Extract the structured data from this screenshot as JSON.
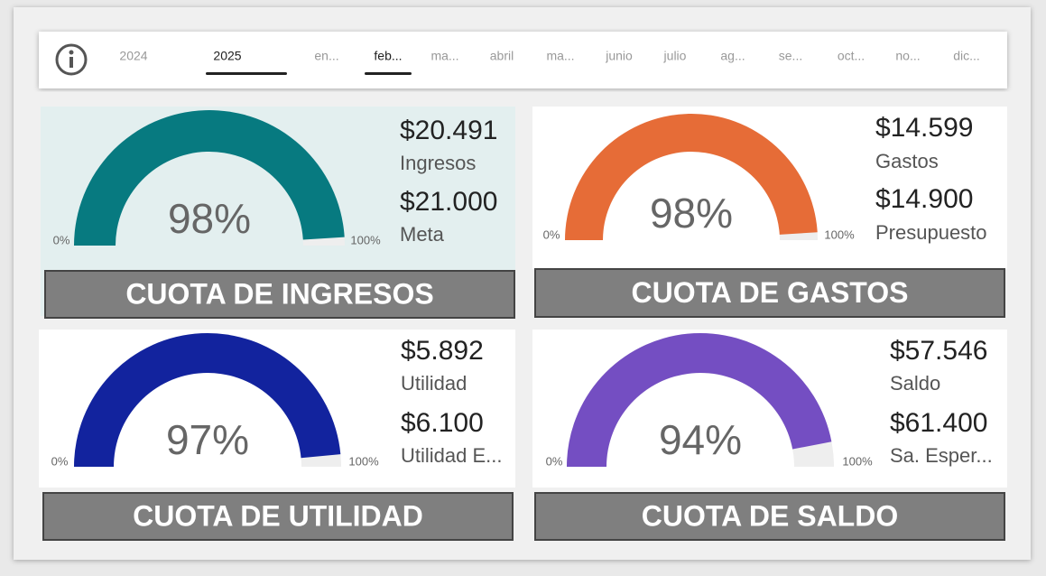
{
  "slicer": {
    "years": [
      "2024",
      "2025"
    ],
    "selected_year": "2025",
    "months": [
      "en...",
      "feb...",
      "ma...",
      "abril",
      "ma...",
      "junio",
      "julio",
      "ag...",
      "se...",
      "oct...",
      "no...",
      "dic..."
    ],
    "selected_month": "feb..."
  },
  "chart_data": [
    {
      "type": "gauge",
      "title": "CUOTA DE INGRESOS",
      "color": "#077a80",
      "gauge_value": 98,
      "gauge_label": "98%",
      "ylim": [
        0,
        100
      ],
      "yticks": [
        {
          "value": 0,
          "label": "0%"
        },
        {
          "value": 100,
          "label": "100%"
        }
      ],
      "categories": [
        "Ingresos",
        "Meta"
      ],
      "values": [
        20491,
        21000
      ],
      "value_labels": [
        "$20.491",
        "$21.000"
      ]
    },
    {
      "type": "gauge",
      "title": "CUOTA DE GASTOS",
      "color": "#e66c37",
      "gauge_value": 98,
      "gauge_label": "98%",
      "ylim": [
        0,
        100
      ],
      "yticks": [
        {
          "value": 0,
          "label": "0%"
        },
        {
          "value": 100,
          "label": "100%"
        }
      ],
      "categories": [
        "Gastos",
        "Presupuesto"
      ],
      "values": [
        14599,
        14900
      ],
      "value_labels": [
        "$14.599",
        "$14.900"
      ]
    },
    {
      "type": "gauge",
      "title": "CUOTA DE UTILIDAD",
      "color": "#12239e",
      "gauge_value": 97,
      "gauge_label": "97%",
      "ylim": [
        0,
        100
      ],
      "yticks": [
        {
          "value": 0,
          "label": "0%"
        },
        {
          "value": 100,
          "label": "100%"
        }
      ],
      "categories": [
        "Utilidad",
        "Utilidad E..."
      ],
      "values": [
        5892,
        6100
      ],
      "value_labels": [
        "$5.892",
        "$6.100"
      ]
    },
    {
      "type": "gauge",
      "title": "CUOTA DE SALDO",
      "color": "#744ec2",
      "gauge_value": 94,
      "gauge_label": "94%",
      "ylim": [
        0,
        100
      ],
      "yticks": [
        {
          "value": 0,
          "label": "0%"
        },
        {
          "value": 100,
          "label": "100%"
        }
      ],
      "categories": [
        "Saldo",
        "Sa. Esper..."
      ],
      "values": [
        57546,
        61400
      ],
      "value_labels": [
        "$57.546",
        "$61.400"
      ]
    }
  ]
}
